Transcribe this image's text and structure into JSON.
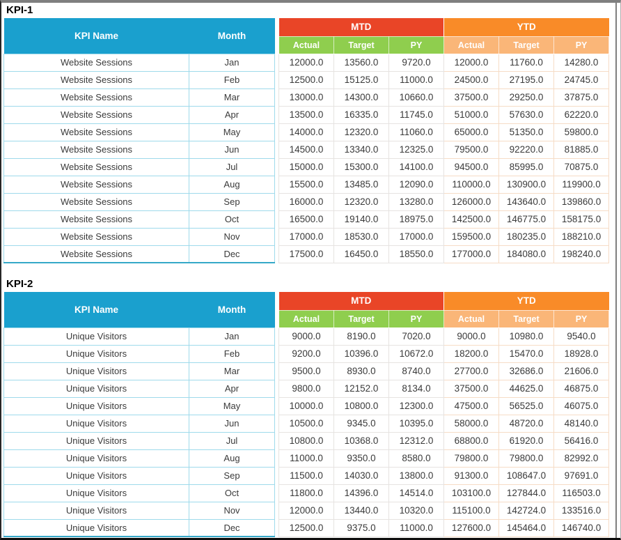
{
  "frame": {
    "top_bar_color": "#7f7f7f",
    "border_color": "#0d0d0d",
    "right_line_color": "#7f7f7f"
  },
  "colors": {
    "header_blue": "#1AA0CE",
    "mtd_red": "#E94527",
    "ytd_orange": "#F98B28",
    "mtd_sub_green": "#8FCE4E",
    "ytd_sub_peach": "#FAB678",
    "name_cell_border": "#9EDAEB",
    "mtd_cell_border": "#E6E3E1",
    "ytd_cell_border": "#F6DCC6",
    "data_text": "#3A3A3A"
  },
  "labels": {
    "kpi_name": "KPI Name",
    "month": "Month",
    "mtd": "MTD",
    "ytd": "YTD",
    "actual": "Actual",
    "target": "Target",
    "py": "PY"
  },
  "tables": [
    {
      "title": "KPI-1",
      "kpi": "Website Sessions",
      "rows": [
        {
          "kpi": "Website Sessions",
          "month": "Jan",
          "values": [
            "12000.0",
            "13560.0",
            "9720.0",
            "12000.0",
            "11760.0",
            "14280.0"
          ]
        },
        {
          "kpi": "Website Sessions",
          "month": "Feb",
          "values": [
            "12500.0",
            "15125.0",
            "11000.0",
            "24500.0",
            "27195.0",
            "24745.0"
          ]
        },
        {
          "kpi": "Website Sessions",
          "month": "Mar",
          "values": [
            "13000.0",
            "14300.0",
            "10660.0",
            "37500.0",
            "29250.0",
            "37875.0"
          ]
        },
        {
          "kpi": "Website Sessions",
          "month": "Apr",
          "values": [
            "13500.0",
            "16335.0",
            "11745.0",
            "51000.0",
            "57630.0",
            "62220.0"
          ]
        },
        {
          "kpi": "Website Sessions",
          "month": "May",
          "values": [
            "14000.0",
            "12320.0",
            "11060.0",
            "65000.0",
            "51350.0",
            "59800.0"
          ]
        },
        {
          "kpi": "Website Sessions",
          "month": "Jun",
          "values": [
            "14500.0",
            "13340.0",
            "12325.0",
            "79500.0",
            "92220.0",
            "81885.0"
          ]
        },
        {
          "kpi": "Website Sessions",
          "month": "Jul",
          "values": [
            "15000.0",
            "15300.0",
            "14100.0",
            "94500.0",
            "85995.0",
            "70875.0"
          ]
        },
        {
          "kpi": "Website Sessions",
          "month": "Aug",
          "values": [
            "15500.0",
            "13485.0",
            "12090.0",
            "110000.0",
            "130900.0",
            "119900.0"
          ]
        },
        {
          "kpi": "Website Sessions",
          "month": "Sep",
          "values": [
            "16000.0",
            "12320.0",
            "13280.0",
            "126000.0",
            "143640.0",
            "139860.0"
          ]
        },
        {
          "kpi": "Website Sessions",
          "month": "Oct",
          "values": [
            "16500.0",
            "19140.0",
            "18975.0",
            "142500.0",
            "146775.0",
            "158175.0"
          ]
        },
        {
          "kpi": "Website Sessions",
          "month": "Nov",
          "values": [
            "17000.0",
            "18530.0",
            "17000.0",
            "159500.0",
            "180235.0",
            "188210.0"
          ]
        },
        {
          "kpi": "Website Sessions",
          "month": "Dec",
          "values": [
            "17500.0",
            "16450.0",
            "18550.0",
            "177000.0",
            "184080.0",
            "198240.0"
          ]
        }
      ]
    },
    {
      "title": "KPI-2",
      "kpi": "Unique Visitors",
      "rows": [
        {
          "kpi": "Unique Visitors",
          "month": "Jan",
          "values": [
            "9000.0",
            "8190.0",
            "7020.0",
            "9000.0",
            "10980.0",
            "9540.0"
          ]
        },
        {
          "kpi": "Unique Visitors",
          "month": "Feb",
          "values": [
            "9200.0",
            "10396.0",
            "10672.0",
            "18200.0",
            "15470.0",
            "18928.0"
          ]
        },
        {
          "kpi": "Unique Visitors",
          "month": "Mar",
          "values": [
            "9500.0",
            "8930.0",
            "8740.0",
            "27700.0",
            "32686.0",
            "21606.0"
          ]
        },
        {
          "kpi": "Unique Visitors",
          "month": "Apr",
          "values": [
            "9800.0",
            "12152.0",
            "8134.0",
            "37500.0",
            "44625.0",
            "46875.0"
          ]
        },
        {
          "kpi": "Unique Visitors",
          "month": "May",
          "values": [
            "10000.0",
            "10800.0",
            "12300.0",
            "47500.0",
            "56525.0",
            "46075.0"
          ]
        },
        {
          "kpi": "Unique Visitors",
          "month": "Jun",
          "values": [
            "10500.0",
            "9345.0",
            "10395.0",
            "58000.0",
            "48720.0",
            "48140.0"
          ]
        },
        {
          "kpi": "Unique Visitors",
          "month": "Jul",
          "values": [
            "10800.0",
            "10368.0",
            "12312.0",
            "68800.0",
            "61920.0",
            "56416.0"
          ]
        },
        {
          "kpi": "Unique Visitors",
          "month": "Aug",
          "values": [
            "11000.0",
            "9350.0",
            "8580.0",
            "79800.0",
            "79800.0",
            "82992.0"
          ]
        },
        {
          "kpi": "Unique Visitors",
          "month": "Sep",
          "values": [
            "11500.0",
            "14030.0",
            "13800.0",
            "91300.0",
            "108647.0",
            "97691.0"
          ]
        },
        {
          "kpi": "Unique Visitors",
          "month": "Oct",
          "values": [
            "11800.0",
            "14396.0",
            "14514.0",
            "103100.0",
            "127844.0",
            "116503.0"
          ]
        },
        {
          "kpi": "Unique Visitors",
          "month": "Nov",
          "values": [
            "12000.0",
            "13440.0",
            "10320.0",
            "115100.0",
            "142724.0",
            "133516.0"
          ]
        },
        {
          "kpi": "Unique Visitors",
          "month": "Dec",
          "values": [
            "12500.0",
            "9375.0",
            "11000.0",
            "127600.0",
            "145464.0",
            "146740.0"
          ]
        }
      ]
    }
  ]
}
